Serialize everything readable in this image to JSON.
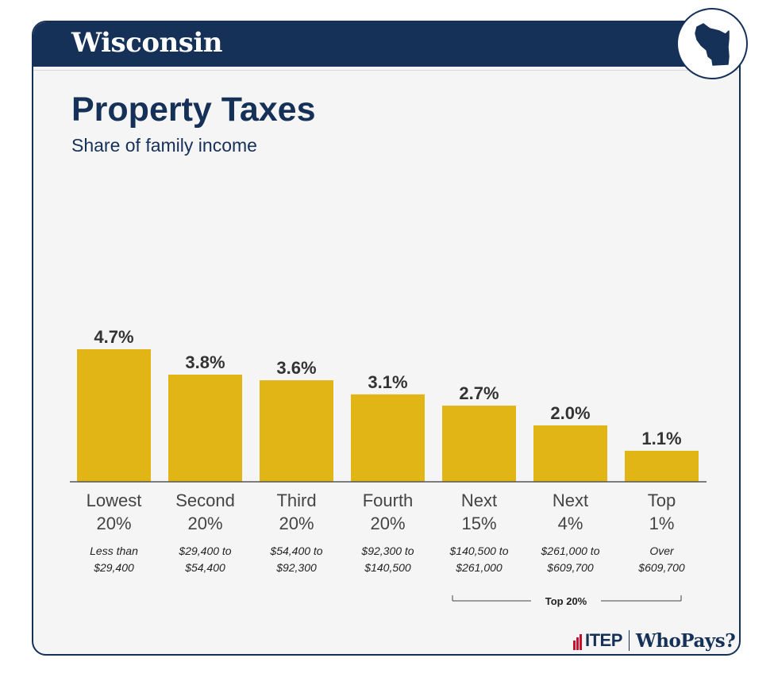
{
  "header": {
    "state": "Wisconsin"
  },
  "icons": {
    "state_badge": "wisconsin-state-icon"
  },
  "colors": {
    "navy": "#163158",
    "bar": "#E1B516",
    "axis": "#555555"
  },
  "chart_data": {
    "type": "bar",
    "title": "Property Taxes",
    "subtitle": "Share of family income",
    "categories": [
      "Lowest 20%",
      "Second 20%",
      "Third 20%",
      "Fourth 20%",
      "Next 15%",
      "Next 4%",
      "Top 1%"
    ],
    "category_lines": [
      [
        "Lowest",
        "20%"
      ],
      [
        "Second",
        "20%"
      ],
      [
        "Third",
        "20%"
      ],
      [
        "Fourth",
        "20%"
      ],
      [
        "Next",
        "15%"
      ],
      [
        "Next",
        "4%"
      ],
      [
        "Top",
        "1%"
      ]
    ],
    "income_ranges": [
      [
        "Less than",
        "$29,400"
      ],
      [
        "$29,400 to",
        "$54,400"
      ],
      [
        "$54,400 to",
        "$92,300"
      ],
      [
        "$92,300 to",
        "$140,500"
      ],
      [
        "$140,500 to",
        "$261,000"
      ],
      [
        "$261,000 to",
        "$609,700"
      ],
      [
        "Over",
        "$609,700"
      ]
    ],
    "values": [
      4.7,
      3.8,
      3.6,
      3.1,
      2.7,
      2.0,
      1.1
    ],
    "value_labels": [
      "4.7%",
      "3.8%",
      "3.6%",
      "3.1%",
      "2.7%",
      "2.0%",
      "1.1%"
    ],
    "unit": "%",
    "ylim": [
      0,
      4.7
    ],
    "grid": false,
    "group_bracket": {
      "label": "Top 20%",
      "from_index": 4,
      "to_index": 6
    }
  },
  "footer": {
    "org": "ITEP",
    "product": "WhoPays?"
  }
}
